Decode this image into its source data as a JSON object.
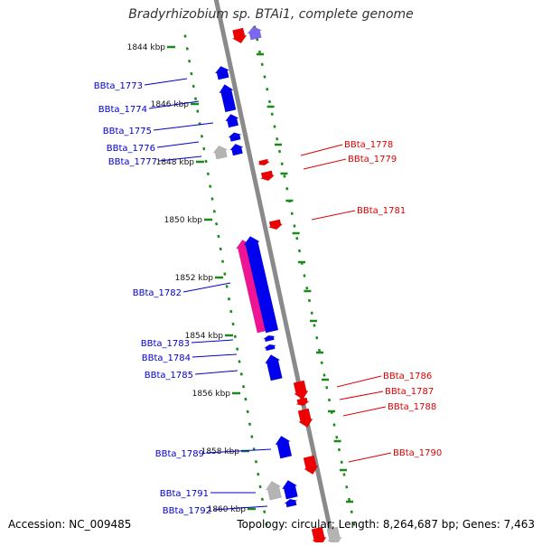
{
  "title": "Bradyrhizobium sp. BTAi1, complete genome",
  "footer": {
    "accession": "Accession: NC_009485",
    "topology": "Topology: circular; Length: 8,264,687 bp; Genes: 7,463"
  },
  "colors": {
    "backbone": "#8a8a8a",
    "forward_gene": "#0000ee",
    "reverse_gene": "#ee0000",
    "pink_gene": "#ee1493",
    "grey_gene": "#b4b4b4",
    "lavender_gene": "#7b68ee",
    "scale_tick": "#1a8a1a",
    "forward_label": "#0000cc",
    "reverse_label": "#dd0000"
  },
  "scale_labels": [
    "1844 kbp",
    "1846 kbp",
    "1848 kbp",
    "1850 kbp",
    "1852 kbp",
    "1854 kbp",
    "1856 kbp",
    "1858 kbp",
    "1860 kbp"
  ],
  "forward_labels": [
    "BBta_1773",
    "BBta_1774",
    "BBta_1775",
    "BBta_1776",
    "BBta_1777",
    "BBta_1782",
    "BBta_1783",
    "BBta_1784",
    "BBta_1785",
    "BBta_1789",
    "BBta_1791",
    "BBta_1792"
  ],
  "reverse_labels": [
    "BBta_1778",
    "BBta_1779",
    "BBta_1781",
    "BBta_1786",
    "BBta_1787",
    "BBta_1788",
    "BBta_1790"
  ]
}
